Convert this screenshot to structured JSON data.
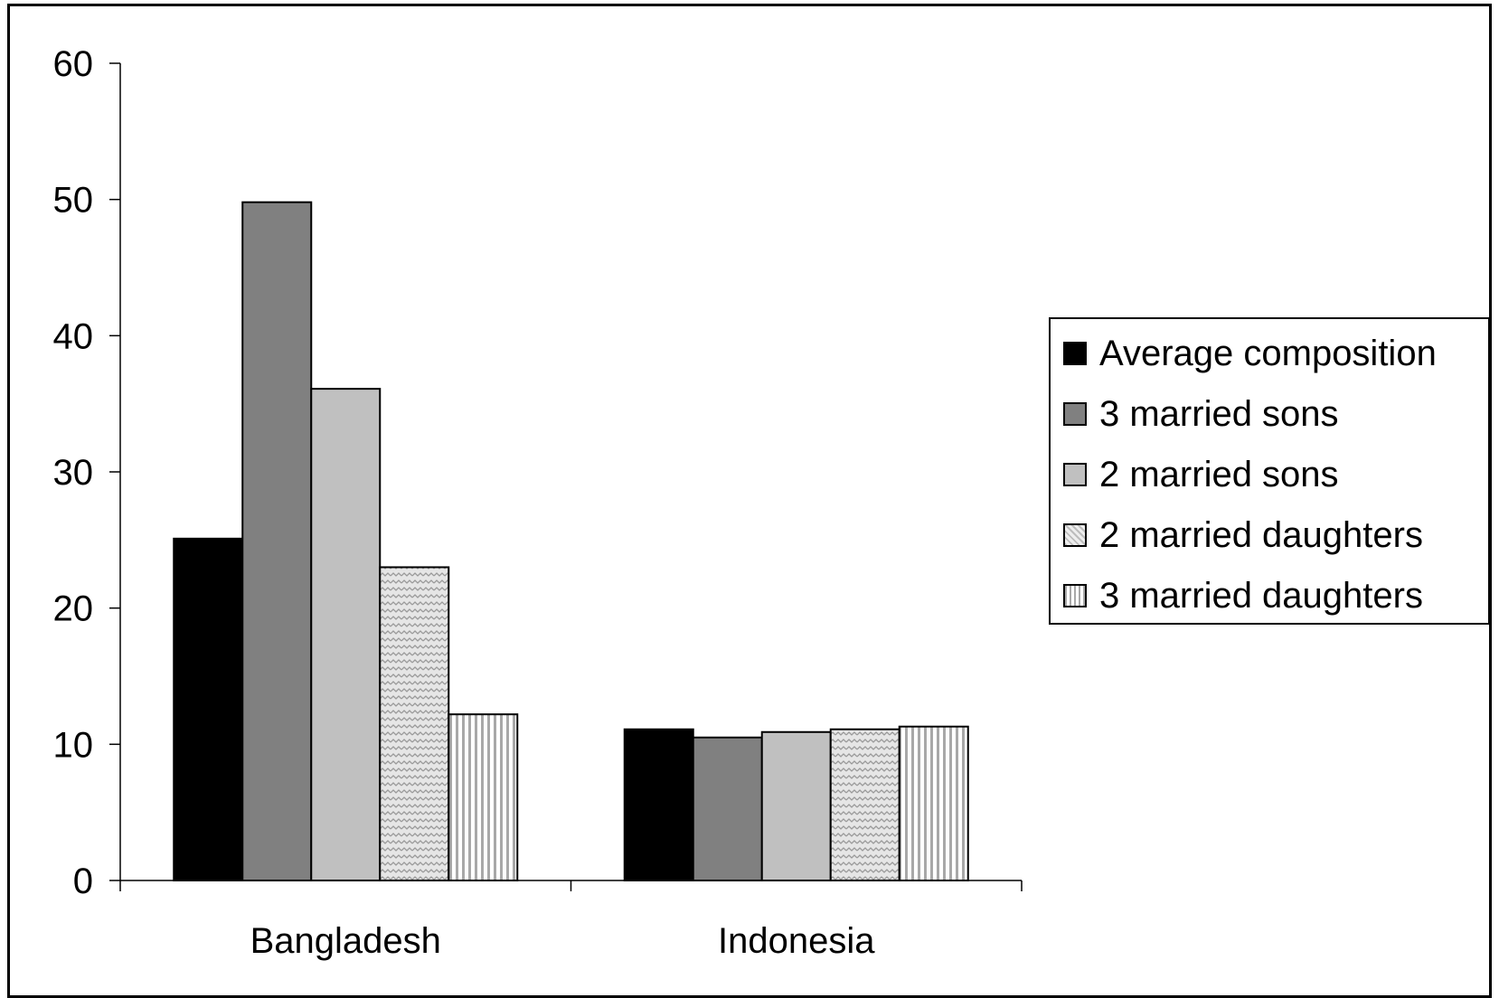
{
  "chart_data": {
    "type": "bar",
    "categories": [
      "Bangladesh",
      "Indonesia"
    ],
    "series": [
      {
        "name": "Average composition",
        "values": [
          25.1,
          11.1
        ],
        "color": "#000000",
        "pattern": "solid"
      },
      {
        "name": "3 married sons",
        "values": [
          49.8,
          10.5
        ],
        "color": "#808080",
        "pattern": "solid"
      },
      {
        "name": "2 married sons",
        "values": [
          36.1,
          10.9
        ],
        "color": "#c0c0c0",
        "pattern": "solid"
      },
      {
        "name": "2 married daughters",
        "values": [
          23.0,
          11.1
        ],
        "color": "#d9d9d9",
        "pattern": "zigzag"
      },
      {
        "name": "3 married daughters",
        "values": [
          12.2,
          11.3
        ],
        "color": "#ffffff",
        "pattern": "vertical-stripes"
      }
    ],
    "title": "",
    "xlabel": "",
    "ylabel": "",
    "ylim": [
      0,
      60
    ],
    "yticks": [
      "0",
      "10",
      "20",
      "30",
      "40",
      "50",
      "60"
    ],
    "grid": false,
    "legend_position": "right"
  }
}
